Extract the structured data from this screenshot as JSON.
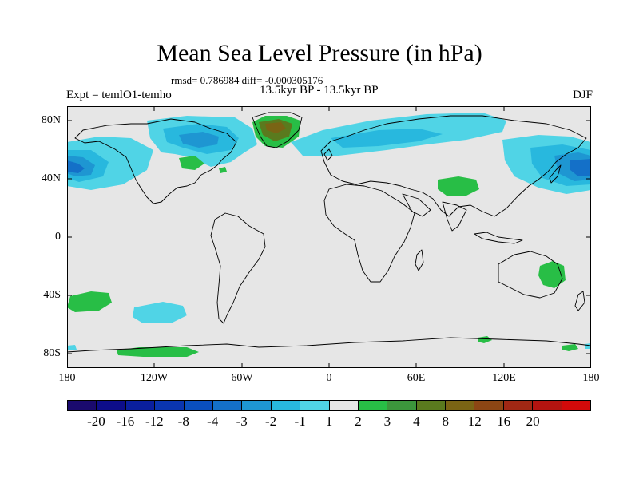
{
  "header": {
    "title": "Mean Sea Level Pressure (in hPa)",
    "stats": "rmsd= 0.786984 diff= -0.000305176",
    "subtitle": "13.5kyr BP - 13.5kyr BP",
    "experiment": "Expt = temlO1-temho",
    "season": "DJF"
  },
  "axes": {
    "y_labels": [
      {
        "text": "80N",
        "lat": 80
      },
      {
        "text": "40N",
        "lat": 40
      },
      {
        "text": "0",
        "lat": 0
      },
      {
        "text": "40S",
        "lat": -40
      },
      {
        "text": "80S",
        "lat": -80
      }
    ],
    "x_labels": [
      {
        "text": "180",
        "lon": -180
      },
      {
        "text": "120W",
        "lon": -120
      },
      {
        "text": "60W",
        "lon": -60
      },
      {
        "text": "0",
        "lon": 0
      },
      {
        "text": "60E",
        "lon": 60
      },
      {
        "text": "120E",
        "lon": 120
      },
      {
        "text": "180",
        "lon": 180
      }
    ]
  },
  "colorbar": {
    "colors": [
      "#1a0a6e",
      "#0d0d8a",
      "#0a1f9e",
      "#0a35b0",
      "#0a4fbe",
      "#1470c8",
      "#1e96d2",
      "#28b8de",
      "#50d4e6",
      "#e6e6e6",
      "#28be46",
      "#3c963c",
      "#5a7a1e",
      "#7a6414",
      "#8c4614",
      "#a02814",
      "#b41410",
      "#d20a0a"
    ],
    "labels": [
      {
        "text": "-20",
        "boundary": 1
      },
      {
        "text": "-16",
        "boundary": 2
      },
      {
        "text": "-12",
        "boundary": 3
      },
      {
        "text": "-8",
        "boundary": 4
      },
      {
        "text": "-4",
        "boundary": 5
      },
      {
        "text": "-3",
        "boundary": 6
      },
      {
        "text": "-2",
        "boundary": 7
      },
      {
        "text": "-1",
        "boundary": 8
      },
      {
        "text": "1",
        "boundary": 9
      },
      {
        "text": "2",
        "boundary": 10
      },
      {
        "text": "3",
        "boundary": 11
      },
      {
        "text": "4",
        "boundary": 12
      },
      {
        "text": "8",
        "boundary": 13
      },
      {
        "text": "12",
        "boundary": 14
      },
      {
        "text": "16",
        "boundary": 15
      },
      {
        "text": "20",
        "boundary": 16
      }
    ]
  },
  "palette": {
    "background": "#e6e6e6",
    "coast": "#000000"
  }
}
